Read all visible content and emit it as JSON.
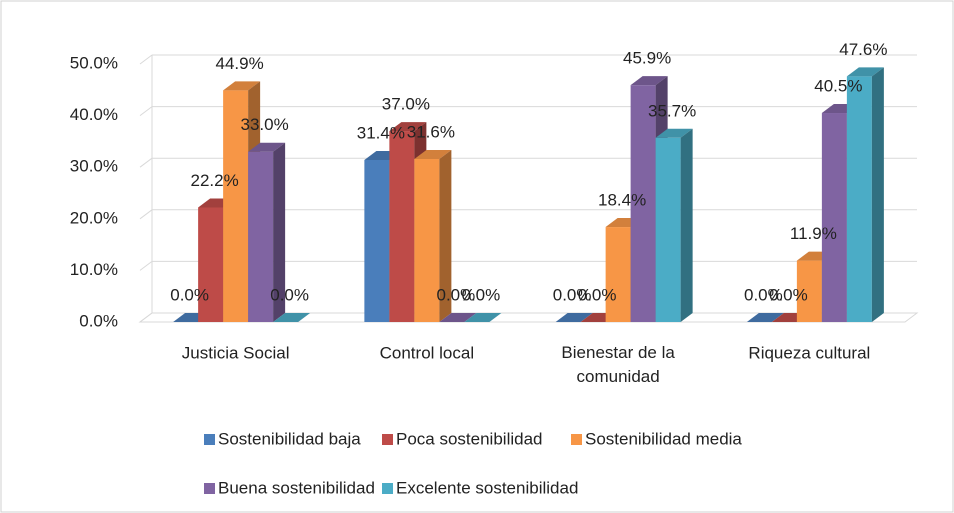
{
  "chart_data": {
    "type": "bar3d",
    "categories": [
      "Justicia Social",
      "Control local",
      "Bienestar de la comunidad",
      "Riqueza cultural"
    ],
    "series": [
      {
        "name": "Sostenibilidad baja",
        "color": "#4a7ebb",
        "values": [
          0,
          31.4,
          0,
          0
        ],
        "value_labels": [
          "0.0%",
          "31.4%",
          "0.0%",
          "0.0%"
        ]
      },
      {
        "name": "Poca sostenibilidad",
        "color": "#be4b48",
        "values": [
          22.2,
          37,
          0,
          0
        ],
        "value_labels": [
          "22.2%",
          "37.0%",
          "0.0%",
          "0.0%"
        ]
      },
      {
        "name": "Sostenibilidad media",
        "color": "#f79646",
        "values": [
          44.9,
          31.6,
          18.4,
          11.9
        ],
        "value_labels": [
          "44.9%",
          "31.6%",
          "18.4%",
          "11.9%"
        ]
      },
      {
        "name": "Buena sostenibilidad",
        "color": "#8064a2",
        "values": [
          33,
          0,
          45.9,
          40.5
        ],
        "value_labels": [
          "33.0%",
          "0.0%",
          "45.9%",
          "40.5%"
        ]
      },
      {
        "name": "Excelente sostenibilidad",
        "color": "#4bacc6",
        "values": [
          0,
          0,
          35.7,
          47.6
        ],
        "value_labels": [
          "0.0%",
          "0.0%",
          "35.7%",
          "47.6%"
        ]
      }
    ],
    "ylim": [
      0,
      50
    ],
    "yticks": [
      {
        "value": 0,
        "label": "0.0%"
      },
      {
        "value": 10,
        "label": "10.0%"
      },
      {
        "value": 20,
        "label": "20.0%"
      },
      {
        "value": 30,
        "label": "30.0%"
      },
      {
        "value": 40,
        "label": "40.0%"
      },
      {
        "value": 50,
        "label": "50.0%"
      }
    ],
    "grid": true,
    "legend": "bottom"
  }
}
